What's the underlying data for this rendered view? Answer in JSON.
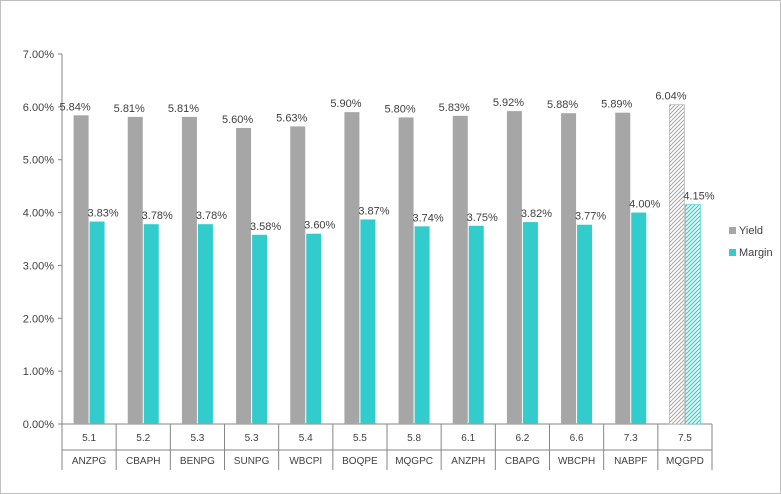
{
  "chart_data": {
    "type": "bar",
    "title": "",
    "xlabel": "",
    "ylabel": "",
    "ylim": [
      0,
      0.07
    ],
    "yticks": [
      "0.00%",
      "1.00%",
      "2.00%",
      "3.00%",
      "4.00%",
      "5.00%",
      "6.00%",
      "7.00%"
    ],
    "grid": false,
    "legend": "right",
    "categories": [
      {
        "top": "5.1",
        "bottom": "ANZPG"
      },
      {
        "top": "5.2",
        "bottom": "CBAPH"
      },
      {
        "top": "5.3",
        "bottom": "BENPG"
      },
      {
        "top": "5.3",
        "bottom": "SUNPG"
      },
      {
        "top": "5.4",
        "bottom": "WBCPI"
      },
      {
        "top": "5.5",
        "bottom": "BOQPE"
      },
      {
        "top": "5.8",
        "bottom": "MQGPC"
      },
      {
        "top": "6.1",
        "bottom": "ANZPH"
      },
      {
        "top": "6.2",
        "bottom": "CBAPG"
      },
      {
        "top": "6.6",
        "bottom": "WBCPH"
      },
      {
        "top": "7.3",
        "bottom": "NABPF"
      },
      {
        "top": "7.5",
        "bottom": "MQGPD"
      }
    ],
    "series": [
      {
        "name": "Yield",
        "color": "#a6a6a6",
        "values": [
          0.0584,
          0.0581,
          0.0581,
          0.056,
          0.0563,
          0.059,
          0.058,
          0.0583,
          0.0592,
          0.0588,
          0.0589,
          0.0604
        ],
        "labels": [
          "5.84%",
          "5.81%",
          "5.81%",
          "5.60%",
          "5.63%",
          "5.90%",
          "5.80%",
          "5.83%",
          "5.92%",
          "5.88%",
          "5.89%",
          "6.04%"
        ]
      },
      {
        "name": "Margin",
        "color": "#33cccc",
        "values": [
          0.0383,
          0.0378,
          0.0378,
          0.0358,
          0.036,
          0.0387,
          0.0374,
          0.0375,
          0.0382,
          0.0377,
          0.04,
          0.0415
        ],
        "labels": [
          "3.83%",
          "3.78%",
          "3.78%",
          "3.58%",
          "3.60%",
          "3.87%",
          "3.74%",
          "3.75%",
          "3.82%",
          "3.77%",
          "4.00%",
          "4.15%"
        ]
      }
    ],
    "hatched_categories": [
      "MQGPD"
    ]
  }
}
